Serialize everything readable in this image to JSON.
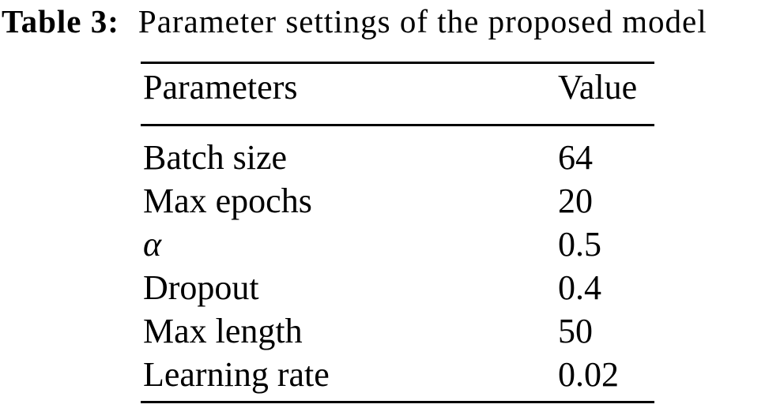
{
  "caption": {
    "label": "Table 3:",
    "text": "Parameter settings of the proposed model"
  },
  "table": {
    "headers": {
      "param": "Parameters",
      "value": "Value"
    },
    "rows": [
      {
        "param": "Batch size",
        "value": "64"
      },
      {
        "param": "Max epochs",
        "value": "20"
      },
      {
        "param": "α",
        "value": "0.5"
      },
      {
        "param": "Dropout",
        "value": "0.4"
      },
      {
        "param": "Max length",
        "value": "50"
      },
      {
        "param": "Learning rate",
        "value": "0.02"
      }
    ],
    "text_color": "#000000",
    "background_color": "#ffffff"
  }
}
